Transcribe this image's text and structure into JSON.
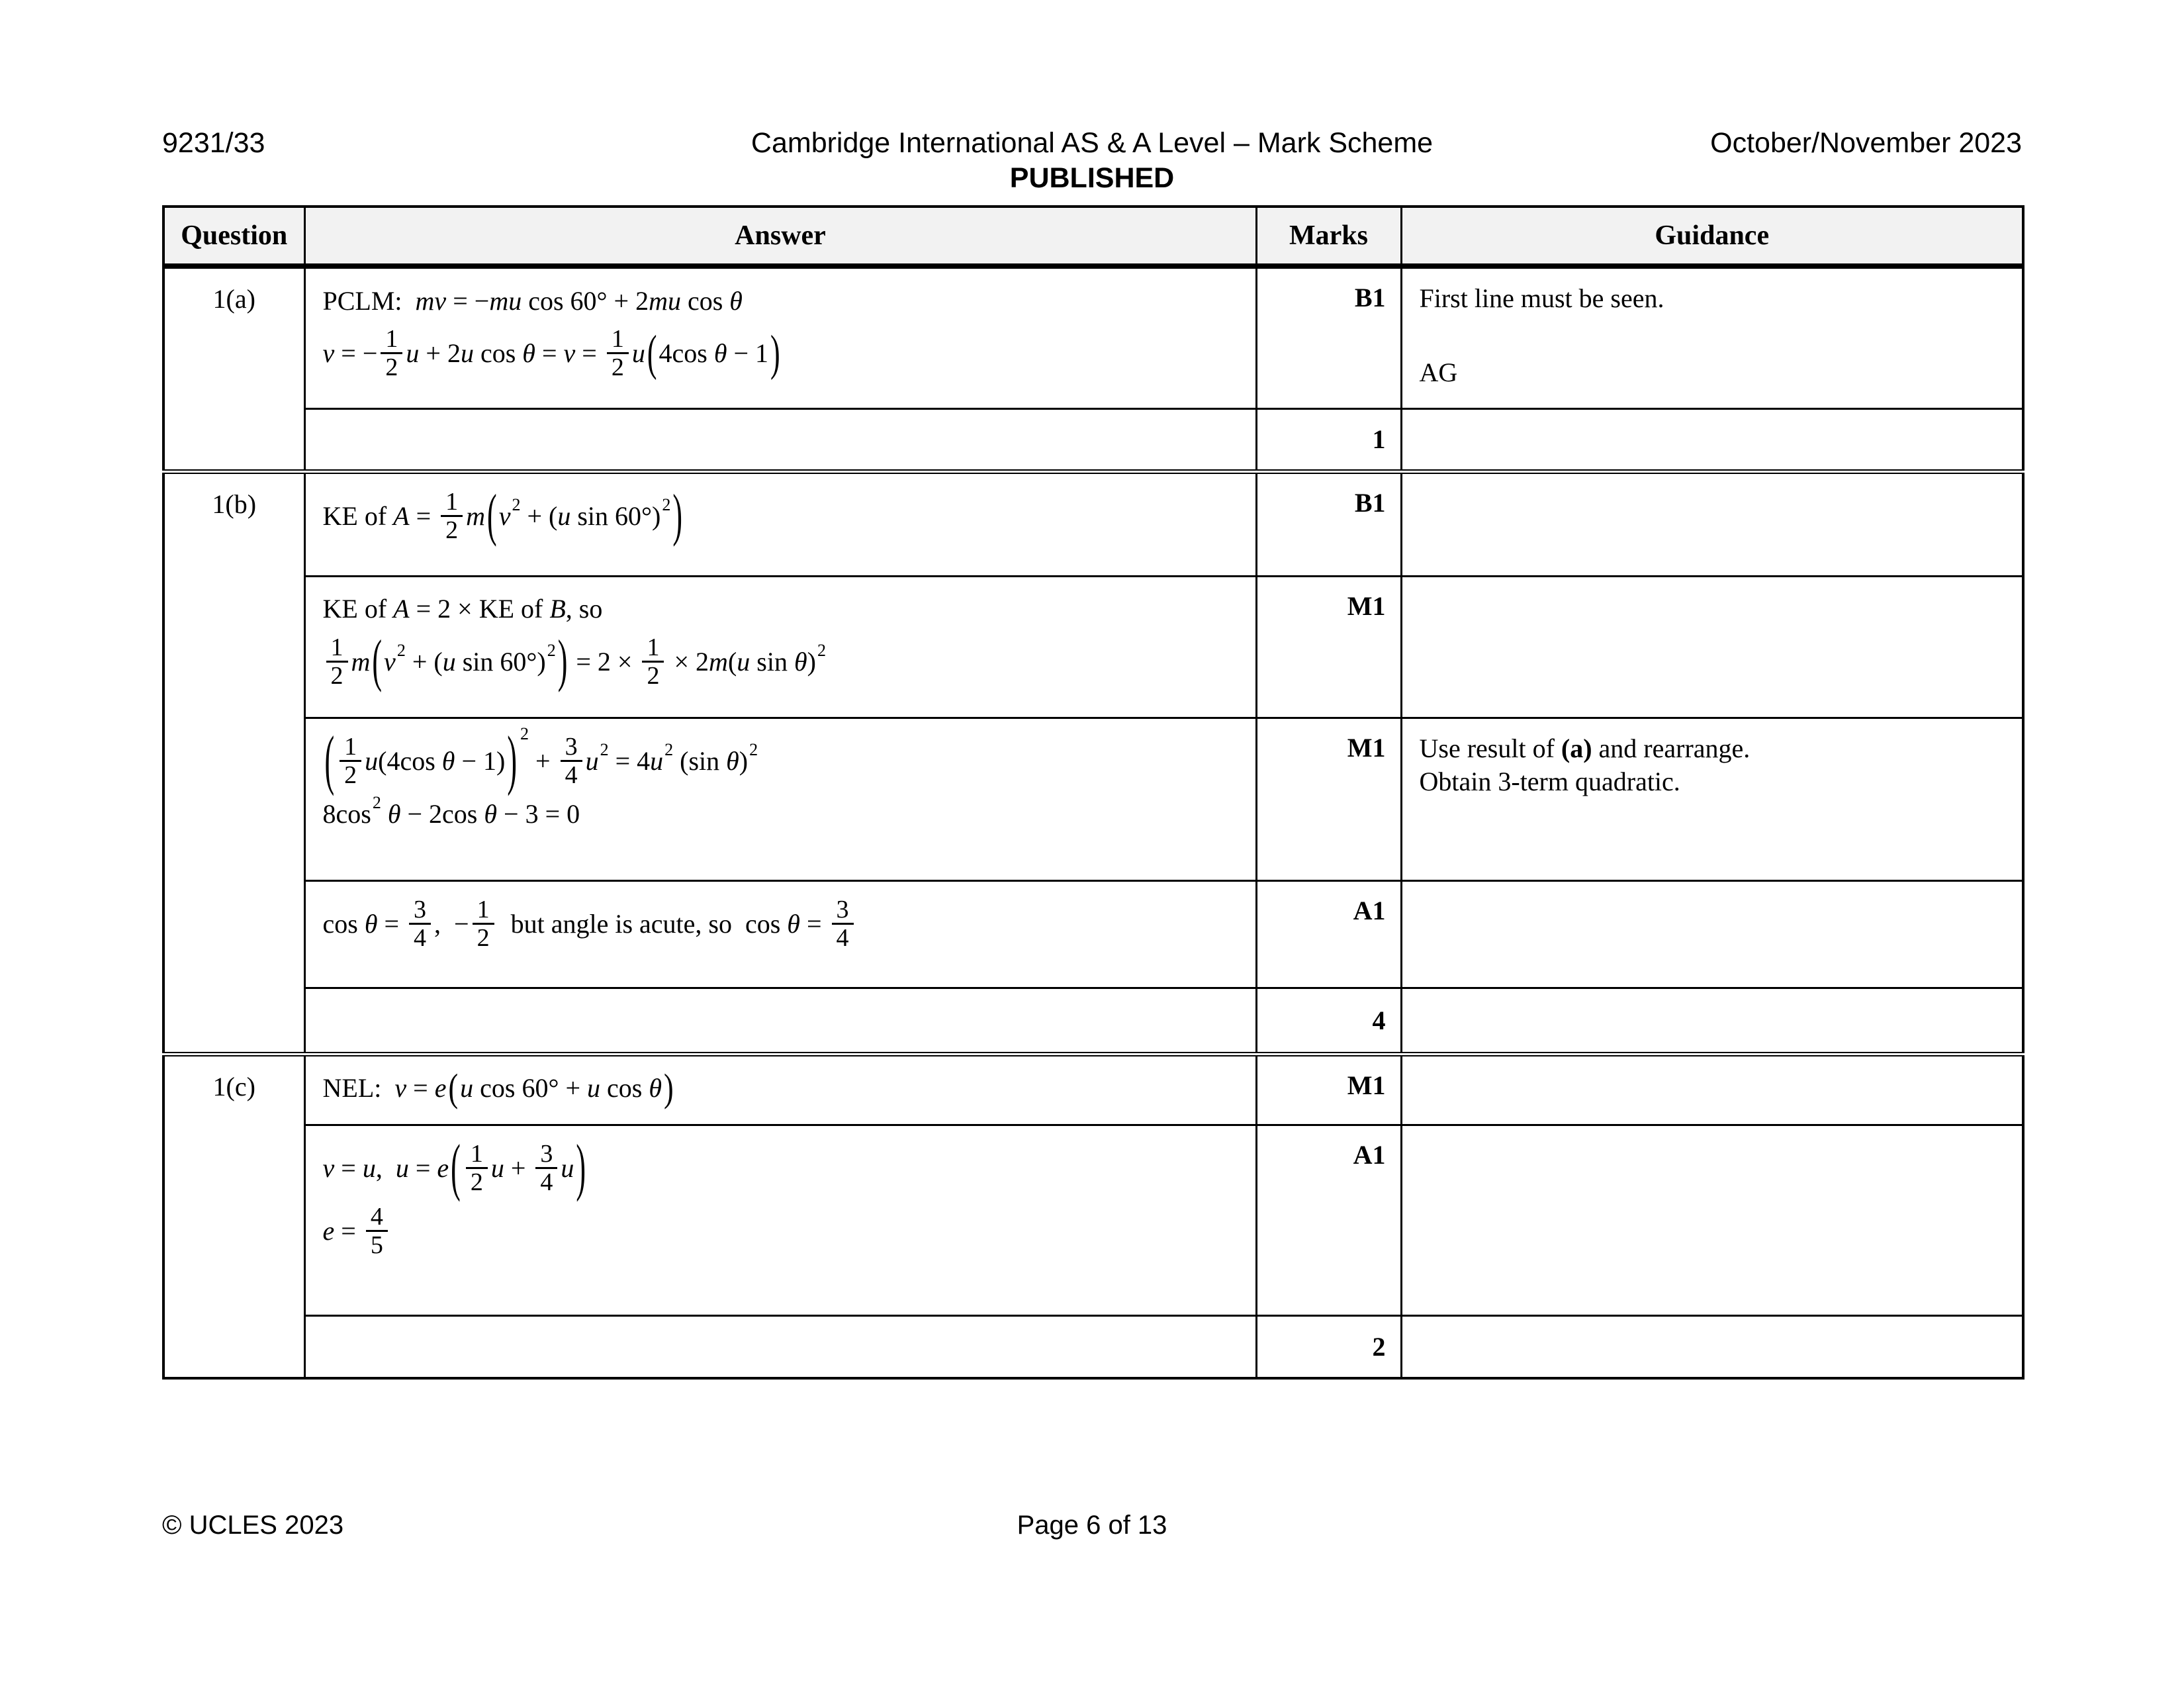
{
  "colors": {
    "header_bg": "#f2f2f2",
    "border": "#000000",
    "text": "#000000"
  },
  "header": {
    "code": "9231/33",
    "title": "Cambridge International AS & A Level – Mark Scheme",
    "published": "PUBLISHED",
    "date": "October/November 2023"
  },
  "footer": {
    "copyright": "© UCLES 2023",
    "page": "Page 6 of 13"
  },
  "table": {
    "columns": {
      "question": "Question",
      "answer": "Answer",
      "marks": "Marks",
      "guidance": "Guidance"
    },
    "blocks": [
      {
        "question": "1(a)",
        "rows": [
          {
            "answer": [
              [
                {
                  "t": "txt",
                  "v": "PCLM:  *mv* = −*mu* cos 60° + 2*mu* cos *θ*"
                }
              ],
              [
                {
                  "t": "txt",
                  "v": "*v* = −"
                },
                {
                  "t": "frac",
                  "n": "1",
                  "d": "2"
                },
                {
                  "t": "txt",
                  "v": "*u* + 2*u* cos *θ* = *v* = "
                },
                {
                  "t": "frac",
                  "n": "1",
                  "d": "2"
                },
                {
                  "t": "txt",
                  "v": "*u*"
                },
                {
                  "t": "big",
                  "v": "(",
                  "s": 1.7
                },
                {
                  "t": "txt",
                  "v": "4cos *θ* − 1"
                },
                {
                  "t": "big",
                  "v": ")",
                  "s": 1.7
                }
              ]
            ],
            "marks": "B1",
            "guidance": [
              {
                "v": "First line must be seen."
              },
              {
                "v": "AG",
                "gap": true
              }
            ]
          },
          {
            "total": "1"
          }
        ]
      },
      {
        "question": "1(b)",
        "rows": [
          {
            "answer": [
              [
                {
                  "t": "txt",
                  "v": "KE of *A* = "
                },
                {
                  "t": "frac",
                  "n": "1",
                  "d": "2"
                },
                {
                  "t": "txt",
                  "v": "*m*"
                },
                {
                  "t": "big",
                  "v": "(",
                  "s": 2.0
                },
                {
                  "t": "txt",
                  "v": "*v*"
                },
                {
                  "t": "sup",
                  "v": "2"
                },
                {
                  "t": "txt",
                  "v": " + (*u* sin 60°)"
                },
                {
                  "t": "sup",
                  "v": "2"
                },
                {
                  "t": "big",
                  "v": ")",
                  "s": 2.0
                }
              ]
            ],
            "marks": "B1",
            "guidance": []
          },
          {
            "answer": [
              [
                {
                  "t": "txt",
                  "v": "KE of *A* = 2 × KE of *B*, so"
                }
              ],
              [
                {
                  "t": "frac",
                  "n": "1",
                  "d": "2"
                },
                {
                  "t": "txt",
                  "v": "*m*"
                },
                {
                  "t": "big",
                  "v": "(",
                  "s": 2.0
                },
                {
                  "t": "txt",
                  "v": "*v*"
                },
                {
                  "t": "sup",
                  "v": "2"
                },
                {
                  "t": "txt",
                  "v": " + (*u* sin 60°)"
                },
                {
                  "t": "sup",
                  "v": "2"
                },
                {
                  "t": "big",
                  "v": ")",
                  "s": 2.0
                },
                {
                  "t": "txt",
                  "v": " = 2 × "
                },
                {
                  "t": "frac",
                  "n": "1",
                  "d": "2"
                },
                {
                  "t": "txt",
                  "v": " × 2*m*(*u* sin *θ*)"
                },
                {
                  "t": "sup",
                  "v": "2"
                }
              ]
            ],
            "marks": "M1",
            "guidance": []
          },
          {
            "answer": [
              [
                {
                  "t": "big",
                  "v": "(",
                  "s": 2.3
                },
                {
                  "t": "frac",
                  "n": "1",
                  "d": "2"
                },
                {
                  "t": "txt",
                  "v": "*u*(4cos *θ* − 1)"
                },
                {
                  "t": "big",
                  "v": ")",
                  "s": 2.3
                },
                {
                  "t": "sup",
                  "v": "2",
                  "hi": true
                },
                {
                  "t": "txt",
                  "v": " + "
                },
                {
                  "t": "frac",
                  "n": "3",
                  "d": "4"
                },
                {
                  "t": "txt",
                  "v": "*u*"
                },
                {
                  "t": "sup",
                  "v": "2"
                },
                {
                  "t": "txt",
                  "v": " = 4*u*"
                },
                {
                  "t": "sup",
                  "v": "2"
                },
                {
                  "t": "txt",
                  "v": " (sin *θ*)"
                },
                {
                  "t": "sup",
                  "v": "2"
                }
              ],
              [
                {
                  "t": "txt",
                  "v": "8cos"
                },
                {
                  "t": "sup",
                  "v": "2"
                },
                {
                  "t": "txt",
                  "v": " *θ* − 2cos *θ* − 3 = 0"
                }
              ]
            ],
            "marks": "M1",
            "guidance": [
              {
                "v": "Use result of #(a)# and rearrange."
              },
              {
                "v": "Obtain 3-term quadratic."
              }
            ]
          },
          {
            "answer": [
              [
                {
                  "t": "txt",
                  "v": "cos *θ* = "
                },
                {
                  "t": "frac",
                  "n": "3",
                  "d": "4"
                },
                {
                  "t": "txt",
                  "v": ",  −"
                },
                {
                  "t": "frac",
                  "n": "1",
                  "d": "2"
                },
                {
                  "t": "txt",
                  "v": "  but angle is acute, so  cos *θ* = "
                },
                {
                  "t": "frac",
                  "n": "3",
                  "d": "4"
                }
              ]
            ],
            "marks": "A1",
            "guidance": []
          },
          {
            "total": "4"
          }
        ]
      },
      {
        "question": "1(c)",
        "rows": [
          {
            "answer": [
              [
                {
                  "t": "txt",
                  "v": "NEL:  *v* = *e*"
                },
                {
                  "t": "big",
                  "v": "(",
                  "s": 1.35
                },
                {
                  "t": "txt",
                  "v": "*u* cos 60° + *u* cos *θ*"
                },
                {
                  "t": "big",
                  "v": ")",
                  "s": 1.35
                }
              ]
            ],
            "marks": "M1",
            "guidance": []
          },
          {
            "answer": [
              [
                {
                  "t": "txt",
                  "v": "*v* = *u*,  *u* = *e*"
                },
                {
                  "t": "big",
                  "v": "(",
                  "s": 2.2
                },
                {
                  "t": "frac",
                  "n": "1",
                  "d": "2"
                },
                {
                  "t": "txt",
                  "v": "*u* + "
                },
                {
                  "t": "frac",
                  "n": "3",
                  "d": "4"
                },
                {
                  "t": "txt",
                  "v": "*u*"
                },
                {
                  "t": "big",
                  "v": ")",
                  "s": 2.2
                }
              ],
              [
                {
                  "t": "txt",
                  "v": "*e* = "
                },
                {
                  "t": "frac",
                  "n": "4",
                  "d": "5"
                }
              ]
            ],
            "marks": "A1",
            "guidance": []
          },
          {
            "total": "2"
          }
        ]
      }
    ]
  }
}
